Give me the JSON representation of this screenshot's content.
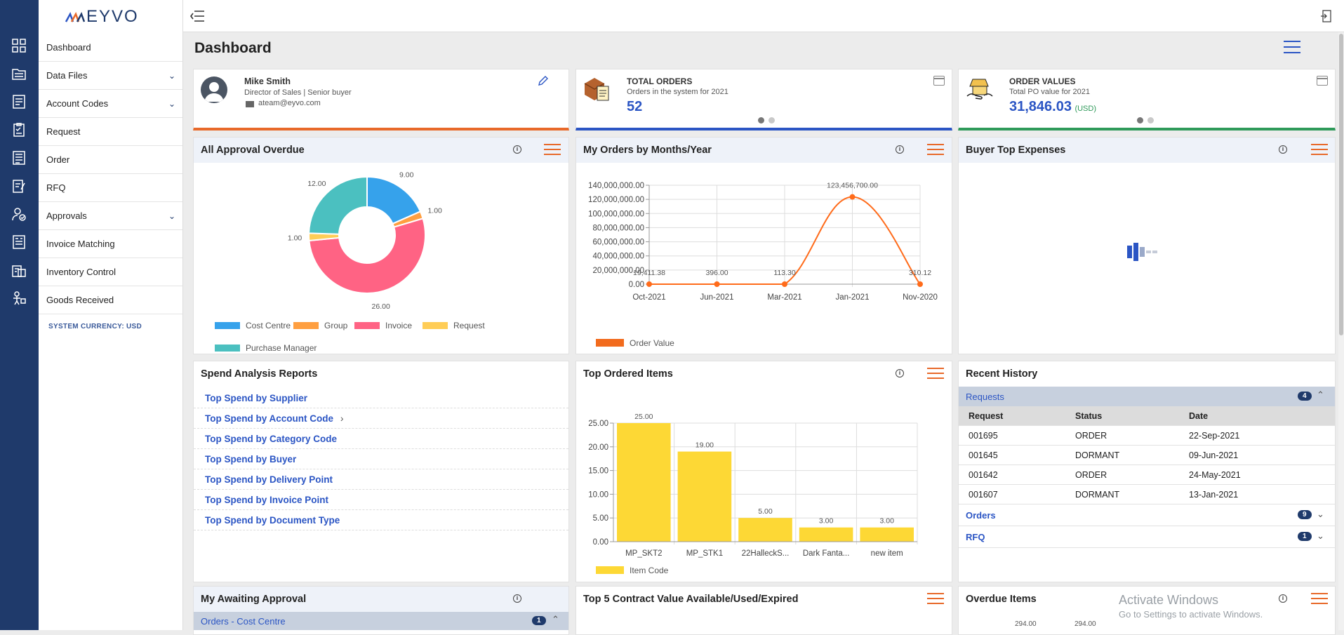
{
  "brand": "EYVO",
  "sidebar": {
    "items": [
      {
        "label": "Dashboard",
        "chevron": false
      },
      {
        "label": "Data Files",
        "chevron": true
      },
      {
        "label": "Account Codes",
        "chevron": true
      },
      {
        "label": "Request",
        "chevron": false
      },
      {
        "label": "Order",
        "chevron": false
      },
      {
        "label": "RFQ",
        "chevron": false
      },
      {
        "label": "Approvals",
        "chevron": true
      },
      {
        "label": "Invoice Matching",
        "chevron": false
      },
      {
        "label": "Inventory Control",
        "chevron": false
      },
      {
        "label": "Goods Received",
        "chevron": false
      }
    ],
    "currency": "SYSTEM CURRENCY: USD"
  },
  "icons": [
    "dashboard-icon",
    "data-files-icon",
    "account-codes-icon",
    "request-icon",
    "order-icon",
    "rfq-icon",
    "approvals-icon",
    "invoice-matching-icon",
    "inventory-icon",
    "goods-received-icon"
  ],
  "page_title": "Dashboard",
  "profile": {
    "name": "Mike Smith",
    "role": "Director of Sales | Senior buyer",
    "email": "ateam@eyvo.com"
  },
  "total_orders": {
    "title": "TOTAL ORDERS",
    "subtitle": "Orders in the system for 2021",
    "value": "52"
  },
  "order_values": {
    "title": "ORDER VALUES",
    "subtitle": "Total PO value for 2021",
    "value": "31,846.03",
    "currency": "(USD)"
  },
  "panels": {
    "approval_overdue": "All Approval Overdue",
    "orders_by_month": "My Orders by Months/Year",
    "buyer_top_expenses": "Buyer Top Expenses",
    "spend_analysis": "Spend Analysis Reports",
    "top_ordered_items": "Top Ordered Items",
    "recent_history": "Recent History",
    "awaiting_approval": "My Awaiting Approval",
    "contract_value": "Top 5 Contract Value Available/Used/Expired",
    "overdue_items": "Overdue Items"
  },
  "spend_links": [
    "Top Spend by Supplier",
    "Top Spend by Account Code",
    "Top Spend by Category Code",
    "Top Spend by Buyer",
    "Top Spend by Delivery Point",
    "Top Spend by Invoice Point",
    "Top Spend by Document Type"
  ],
  "recent_history": {
    "requests_label": "Requests",
    "requests_count": "4",
    "columns": [
      "Request",
      "Status",
      "Date"
    ],
    "rows": [
      [
        "001695",
        "ORDER",
        "22-Sep-2021"
      ],
      [
        "001645",
        "DORMANT",
        "09-Jun-2021"
      ],
      [
        "001642",
        "ORDER",
        "24-May-2021"
      ],
      [
        "001607",
        "DORMANT",
        "13-Jan-2021"
      ]
    ],
    "orders_label": "Orders",
    "orders_count": "9",
    "rfq_label": "RFQ",
    "rfq_count": "1"
  },
  "awaiting": {
    "section": "Orders - Cost Centre",
    "count": "1"
  },
  "overdue_partial_labels": [
    "294.00",
    "294.00"
  ],
  "watermark": {
    "title": "Activate Windows",
    "sub": "Go to Settings to activate Windows."
  },
  "colors": {
    "navy": "#1f3a6b",
    "orange": "#e8692a",
    "blue": "#2b55c4",
    "green": "#2f9a5a",
    "bar_yellow": "#fdd835"
  },
  "chart_data": [
    {
      "type": "pie",
      "categories": [
        "Cost Centre",
        "Group",
        "Invoice",
        "Request",
        "Purchase Manager"
      ],
      "values": [
        9.0,
        1.0,
        26.0,
        1.0,
        12.0
      ],
      "labels": [
        "9.00",
        "1.00",
        "26.00",
        "1.00",
        "12.00"
      ],
      "colors": [
        "#36a2eb",
        "#ff9f40",
        "#ff6384",
        "#ffcd56",
        "#4bc0c0"
      ],
      "legend": "bottom"
    },
    {
      "type": "line",
      "categories": [
        "Oct-2021",
        "Jun-2021",
        "Mar-2021",
        "Jan-2021",
        "Nov-2020"
      ],
      "series": [
        {
          "name": "Order  Value",
          "values": [
            19411.38,
            396.0,
            113.3,
            123456700.0,
            310.12
          ]
        }
      ],
      "labels": [
        "19,411.38",
        "396.00",
        "113.30",
        "123,456,700.00",
        "310.12"
      ],
      "yticks": [
        "0.00",
        "20,000,000.00",
        "40,000,000.00",
        "60,000,000.00",
        "80,000,000.00",
        "100,000,000.00",
        "120,000,000.00",
        "140,000,000.00"
      ],
      "ylim": [
        0,
        140000000
      ],
      "color": "#ff6b1a",
      "grid": true,
      "legend": "bottom-left"
    },
    {
      "type": "bar",
      "categories": [
        "MP_SKT2",
        "MP_STK1",
        "22HalleckS...",
        "Dark  Fanta...",
        "new  item"
      ],
      "series": [
        {
          "name": "Item  Code",
          "values": [
            25.0,
            19.0,
            5.0,
            3.0,
            3.0
          ]
        }
      ],
      "labels": [
        "25.00",
        "19.00",
        "5.00",
        "3.00",
        "3.00"
      ],
      "yticks": [
        "0.00",
        "5.00",
        "10.00",
        "15.00",
        "20.00",
        "25.00"
      ],
      "ylim": [
        0,
        25
      ],
      "color": "#fdd835",
      "grid": true,
      "legend": "bottom-left"
    }
  ]
}
